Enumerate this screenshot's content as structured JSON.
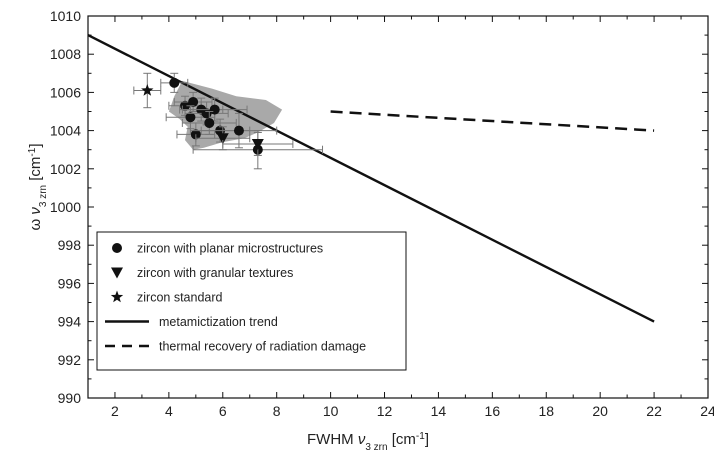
{
  "chart_data": {
    "type": "scatter",
    "xlabel": {
      "base": "FWHM ",
      "nu": "ν",
      "sub": "3 zrn",
      "unit": " [cm",
      "sup": "-1",
      "close": "]"
    },
    "ylabel": {
      "base": "ω ",
      "nu": "ν",
      "sub": "3 zrn",
      "unit": " [cm",
      "sup": "-1",
      "close": "]"
    },
    "xlim": [
      1,
      24
    ],
    "ylim": [
      990,
      1010
    ],
    "xticks": [
      2,
      4,
      6,
      8,
      10,
      12,
      14,
      16,
      18,
      20,
      22,
      24
    ],
    "yticks": [
      990,
      992,
      994,
      996,
      998,
      1000,
      1002,
      1004,
      1006,
      1008,
      1010
    ],
    "grid": false,
    "legend_position": "bottom-left",
    "colors": {
      "series": "#111111",
      "region": "#a9a9a9",
      "errorbar": "#777777"
    },
    "shaded_region": [
      [
        4.5,
        1006.6
      ],
      [
        5.6,
        1006.2
      ],
      [
        6.5,
        1005.8
      ],
      [
        7.6,
        1005.6
      ],
      [
        8.2,
        1005.1
      ],
      [
        7.9,
        1004.4
      ],
      [
        7.3,
        1003.9
      ],
      [
        6.8,
        1003.6
      ],
      [
        6.0,
        1003.4
      ],
      [
        5.3,
        1003.1
      ],
      [
        4.9,
        1003.0
      ],
      [
        4.6,
        1003.5
      ],
      [
        4.7,
        1004.2
      ],
      [
        4.4,
        1004.6
      ],
      [
        4.0,
        1005.0
      ],
      [
        4.2,
        1005.8
      ]
    ],
    "series": [
      {
        "name": "zircon with planar microstructures",
        "marker": "circle",
        "points": [
          {
            "x": 4.2,
            "y": 1006.5,
            "xerr": 0.5,
            "yerr": 0.5
          },
          {
            "x": 4.6,
            "y": 1005.3,
            "xerr": 0.6,
            "yerr": 0.5
          },
          {
            "x": 4.9,
            "y": 1005.5,
            "xerr": 0.7,
            "yerr": 0.5
          },
          {
            "x": 5.2,
            "y": 1005.1,
            "xerr": 0.8,
            "yerr": 0.6
          },
          {
            "x": 4.8,
            "y": 1004.7,
            "xerr": 0.9,
            "yerr": 0.6
          },
          {
            "x": 5.4,
            "y": 1004.9,
            "xerr": 0.8,
            "yerr": 0.6
          },
          {
            "x": 5.7,
            "y": 1005.1,
            "xerr": 1.2,
            "yerr": 0.6
          },
          {
            "x": 5.5,
            "y": 1004.4,
            "xerr": 1.0,
            "yerr": 0.6
          },
          {
            "x": 5.0,
            "y": 1003.8,
            "xerr": 0.7,
            "yerr": 0.6
          },
          {
            "x": 5.9,
            "y": 1004.0,
            "xerr": 1.1,
            "yerr": 0.6
          },
          {
            "x": 6.6,
            "y": 1004.0,
            "xerr": 1.4,
            "yerr": 0.9
          },
          {
            "x": 7.3,
            "y": 1003.0,
            "xerr": 2.4,
            "yerr": 1.0
          }
        ]
      },
      {
        "name": "zircon with granular textures",
        "marker": "triangle-down",
        "points": [
          {
            "x": 6.0,
            "y": 1003.6,
            "xerr": 1.0,
            "yerr": 0.6
          },
          {
            "x": 7.3,
            "y": 1003.3,
            "xerr": 1.3,
            "yerr": 0.6
          }
        ]
      },
      {
        "name": "zircon standard",
        "marker": "star",
        "points": [
          {
            "x": 3.2,
            "y": 1006.1,
            "xerr": 0.5,
            "yerr": 0.9
          }
        ]
      },
      {
        "name": "metamictization trend",
        "style": "solid",
        "line": [
          [
            1,
            1009.0
          ],
          [
            22,
            994.0
          ]
        ]
      },
      {
        "name": "thermal recovery of radiation damage",
        "style": "dashed",
        "line": [
          [
            10,
            1005.0
          ],
          [
            22,
            1004.0
          ]
        ]
      }
    ]
  }
}
